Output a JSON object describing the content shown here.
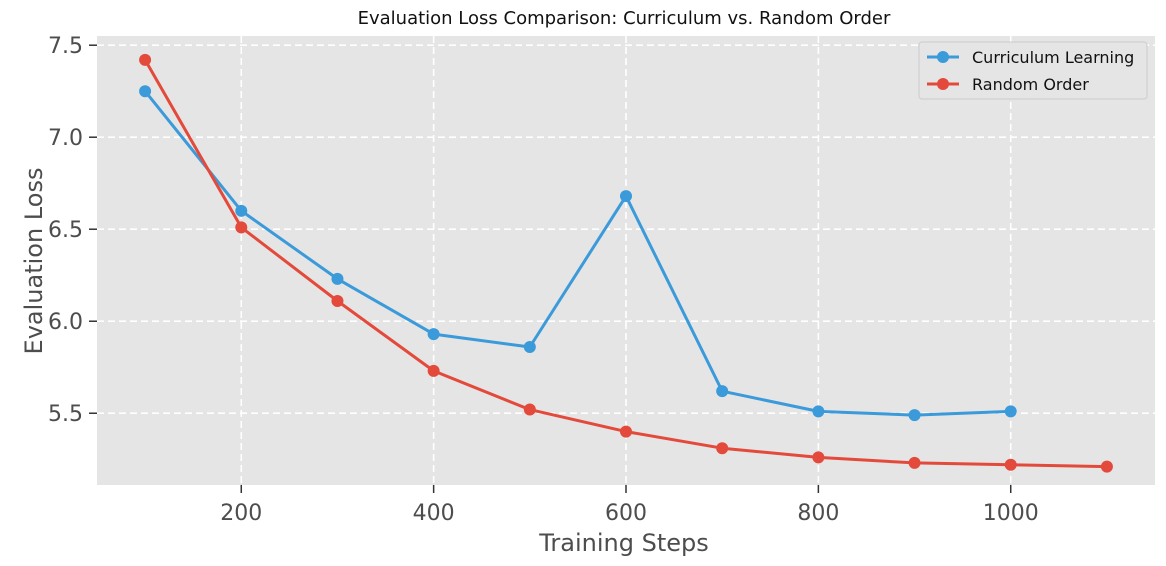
{
  "chart_data": {
    "type": "line",
    "title": "Evaluation Loss Comparison: Curriculum vs. Random Order",
    "xlabel": "Training Steps",
    "ylabel": "Evaluation Loss",
    "xlim": [
      50,
      1150
    ],
    "ylim": [
      5.11,
      7.55
    ],
    "xticks": [
      200,
      400,
      600,
      800,
      1000
    ],
    "yticks": [
      5.5,
      6.0,
      6.5,
      7.0,
      7.5
    ],
    "xtick_labels": [
      "200",
      "400",
      "600",
      "800",
      "1000"
    ],
    "ytick_labels": [
      "5.5",
      "6.0",
      "6.5",
      "7.0",
      "7.5"
    ],
    "grid": true,
    "legend_position": "top-right",
    "series": [
      {
        "name": "Curriculum Learning",
        "color": "#3b9ad9",
        "x": [
          100,
          200,
          300,
          400,
          500,
          600,
          700,
          800,
          900,
          1000
        ],
        "y": [
          7.25,
          6.6,
          6.23,
          5.93,
          5.86,
          6.68,
          5.62,
          5.51,
          5.49,
          5.51
        ]
      },
      {
        "name": "Random Order",
        "color": "#e34a3b",
        "x": [
          100,
          200,
          300,
          400,
          500,
          600,
          700,
          800,
          900,
          1000,
          1100
        ],
        "y": [
          7.42,
          6.51,
          6.11,
          5.73,
          5.52,
          5.4,
          5.31,
          5.26,
          5.23,
          5.22,
          5.21
        ]
      }
    ],
    "colors": {
      "plot_background": "#e5e5e5",
      "grid": "#ffffff",
      "text": "#4d4d4d"
    }
  }
}
